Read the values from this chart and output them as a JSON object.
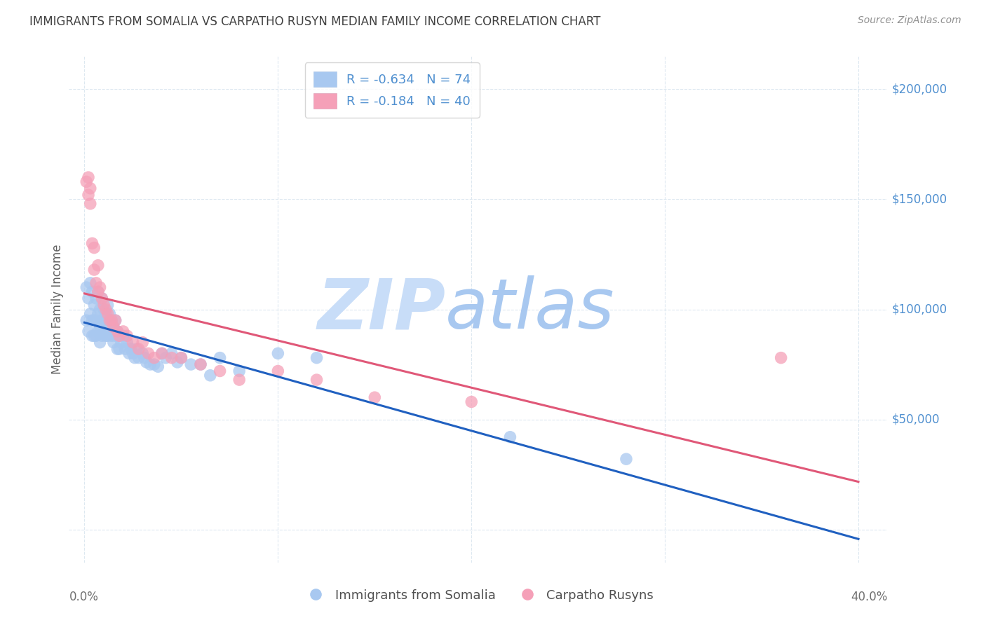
{
  "title": "IMMIGRANTS FROM SOMALIA VS CARPATHO RUSYN MEDIAN FAMILY INCOME CORRELATION CHART",
  "source": "Source: ZipAtlas.com",
  "ylabel": "Median Family Income",
  "legend_somalia": "Immigrants from Somalia",
  "legend_rusyn": "Carpatho Rusyns",
  "R_somalia": -0.634,
  "N_somalia": 74,
  "R_rusyn": -0.184,
  "N_rusyn": 40,
  "color_somalia": "#a8c8f0",
  "color_rusyn": "#f5a0b8",
  "line_color_somalia": "#2060c0",
  "line_color_rusyn": "#e05878",
  "watermark_zip": "ZIP",
  "watermark_atlas": "atlas",
  "watermark_color_zip": "#c8ddf8",
  "watermark_color_atlas": "#a8c8f0",
  "background_color": "#ffffff",
  "title_color": "#404040",
  "source_color": "#909090",
  "axis_label_color": "#5090d0",
  "grid_color": "#dde8f0",
  "ytick_labels": [
    "$200,000",
    "$150,000",
    "$100,000",
    "$50,000"
  ],
  "ytick_vals": [
    200000,
    150000,
    100000,
    50000
  ],
  "somalia_x": [
    0.001,
    0.001,
    0.002,
    0.002,
    0.003,
    0.003,
    0.004,
    0.004,
    0.004,
    0.005,
    0.005,
    0.005,
    0.006,
    0.006,
    0.006,
    0.007,
    0.007,
    0.007,
    0.008,
    0.008,
    0.008,
    0.009,
    0.009,
    0.009,
    0.01,
    0.01,
    0.01,
    0.011,
    0.011,
    0.012,
    0.012,
    0.012,
    0.013,
    0.013,
    0.014,
    0.014,
    0.015,
    0.015,
    0.016,
    0.016,
    0.017,
    0.017,
    0.018,
    0.018,
    0.019,
    0.02,
    0.021,
    0.022,
    0.023,
    0.024,
    0.025,
    0.026,
    0.027,
    0.028,
    0.03,
    0.031,
    0.032,
    0.034,
    0.036,
    0.038,
    0.04,
    0.042,
    0.045,
    0.048,
    0.05,
    0.055,
    0.06,
    0.065,
    0.07,
    0.08,
    0.1,
    0.12,
    0.22,
    0.28
  ],
  "somalia_y": [
    110000,
    95000,
    105000,
    90000,
    112000,
    98000,
    108000,
    95000,
    88000,
    102000,
    95000,
    88000,
    105000,
    95000,
    88000,
    108000,
    98000,
    90000,
    100000,
    92000,
    85000,
    105000,
    95000,
    88000,
    100000,
    95000,
    90000,
    98000,
    88000,
    102000,
    95000,
    88000,
    98000,
    92000,
    95000,
    88000,
    92000,
    85000,
    95000,
    88000,
    90000,
    82000,
    88000,
    82000,
    85000,
    88000,
    82000,
    85000,
    80000,
    82000,
    80000,
    78000,
    82000,
    78000,
    80000,
    78000,
    76000,
    75000,
    75000,
    74000,
    80000,
    78000,
    80000,
    76000,
    78000,
    75000,
    75000,
    70000,
    78000,
    72000,
    80000,
    78000,
    42000,
    32000
  ],
  "rusyn_x": [
    0.001,
    0.002,
    0.002,
    0.003,
    0.003,
    0.004,
    0.005,
    0.005,
    0.006,
    0.007,
    0.007,
    0.008,
    0.009,
    0.01,
    0.011,
    0.012,
    0.013,
    0.014,
    0.015,
    0.016,
    0.017,
    0.018,
    0.02,
    0.022,
    0.025,
    0.028,
    0.03,
    0.033,
    0.036,
    0.04,
    0.045,
    0.05,
    0.06,
    0.07,
    0.08,
    0.1,
    0.12,
    0.15,
    0.2,
    0.36
  ],
  "rusyn_y": [
    158000,
    152000,
    160000,
    148000,
    155000,
    130000,
    128000,
    118000,
    112000,
    120000,
    108000,
    110000,
    105000,
    102000,
    100000,
    98000,
    95000,
    95000,
    92000,
    95000,
    90000,
    88000,
    90000,
    88000,
    85000,
    82000,
    85000,
    80000,
    78000,
    80000,
    78000,
    78000,
    75000,
    72000,
    68000,
    72000,
    68000,
    60000,
    58000,
    78000
  ]
}
